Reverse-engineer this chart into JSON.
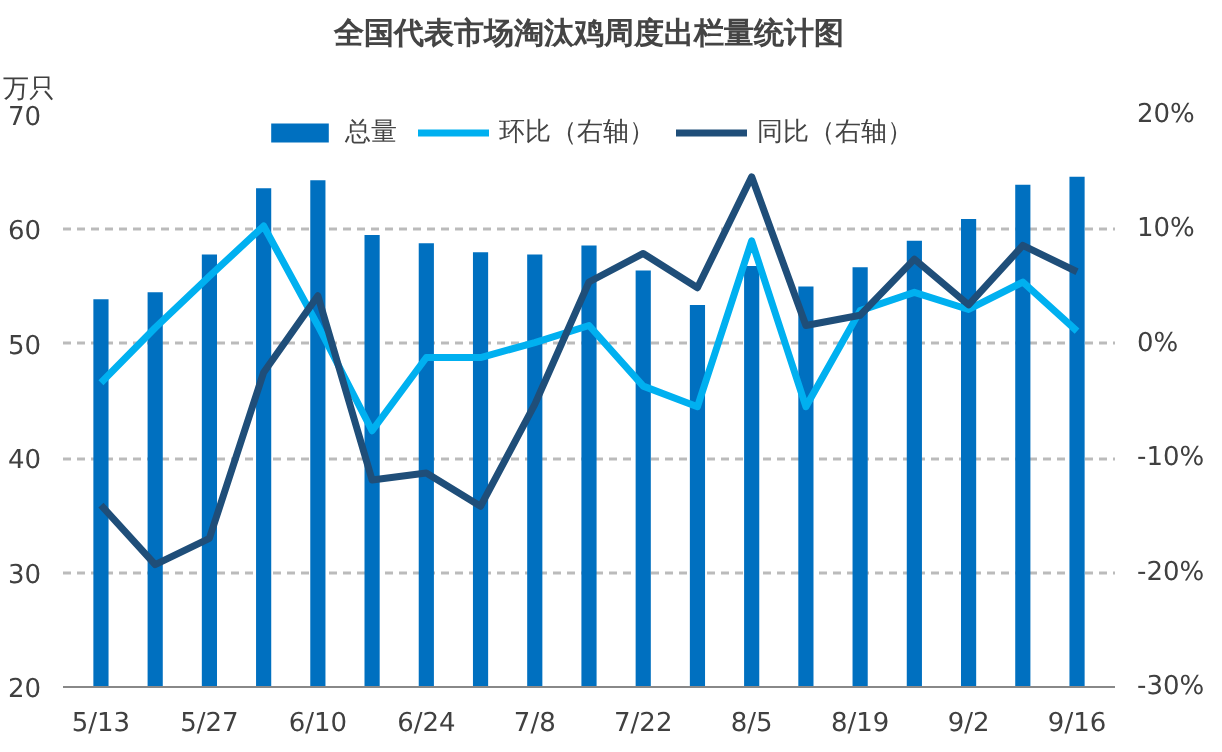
{
  "chart_data": {
    "type": "bar",
    "title": "全国代表市场淘汰鸡周度出栏量统计图",
    "ylabel": "万只",
    "categories": [
      "5/13",
      null,
      "5/27",
      null,
      "6/10",
      null,
      "6/24",
      null,
      "7/8",
      null,
      "7/22",
      null,
      "8/5",
      null,
      "8/19",
      null,
      "9/2",
      null,
      "9/16"
    ],
    "series": [
      {
        "name": "总量",
        "color": "#0070c0",
        "values": [
          53.9,
          54.5,
          57.8,
          63.6,
          64.3,
          59.5,
          58.8,
          58.0,
          57.8,
          58.6,
          56.4,
          53.4,
          56.8,
          55.0,
          56.7,
          59.0,
          60.9,
          63.9,
          64.6
        ]
      },
      {
        "name": "环比（右轴）",
        "type": "line",
        "axis": "y2",
        "color": "#00b0f0",
        "values": [
          -3.4,
          1.4,
          5.9,
          10.3,
          1.6,
          -7.6,
          -1.2,
          -1.2,
          0.1,
          1.6,
          -3.7,
          -5.5,
          9.0,
          -5.5,
          2.9,
          4.5,
          3.0,
          5.4,
          1.1
        ]
      },
      {
        "name": "同比（右轴）",
        "type": "line",
        "axis": "y2",
        "color": "#1f4e79",
        "values": [
          -14.1,
          -19.3,
          -17.0,
          -2.5,
          4.2,
          -11.9,
          -11.3,
          -14.2,
          -5.3,
          5.4,
          7.9,
          4.9,
          14.6,
          1.6,
          2.5,
          7.4,
          3.4,
          8.6,
          6.3
        ]
      }
    ],
    "ylim": [
      20,
      70
    ],
    "yticks": [
      20,
      30,
      40,
      50,
      60,
      70
    ],
    "y2lim": [
      -30,
      20
    ],
    "y2ticks": [
      {
        "value": -30,
        "label": "-30%"
      },
      {
        "value": -20,
        "label": "-20%"
      },
      {
        "value": -10,
        "label": "-10%"
      },
      {
        "value": 0,
        "label": "0%"
      },
      {
        "value": 10,
        "label": "10%"
      },
      {
        "value": 20,
        "label": "20%"
      }
    ],
    "grid": "y",
    "legend": "top",
    "marker": "none",
    "line_style": "solid"
  }
}
